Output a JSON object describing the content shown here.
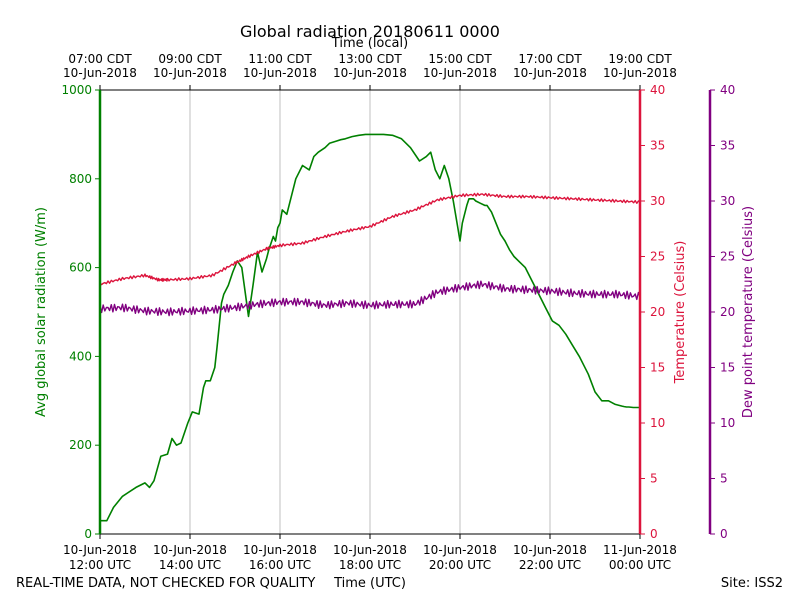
{
  "colors": {
    "solar": "#008000",
    "temperature": "#dc143c",
    "dewpoint": "#800080",
    "grid": "#b0b0b0",
    "axis": "#000000"
  },
  "footer": {
    "left": "REAL-TIME DATA, NOT CHECKED FOR QUALITY",
    "right": "Site: ISS2"
  },
  "chart_data": {
    "type": "line",
    "title": "Global radiation 20180611 0000",
    "xlabel": "Time (UTC)",
    "x2label": "Time (local)",
    "x_range_hours": [
      0,
      12
    ],
    "x_unit": "hours since 10-Jun-2018 12:00 UTC",
    "x_ticks": [
      {
        "hour": 0,
        "utc_date": "10-Jun-2018",
        "utc_time": "12:00 UTC",
        "local_time": "07:00 CDT",
        "local_date": "10-Jun-2018"
      },
      {
        "hour": 2,
        "utc_date": "10-Jun-2018",
        "utc_time": "14:00 UTC",
        "local_time": "09:00 CDT",
        "local_date": "10-Jun-2018"
      },
      {
        "hour": 4,
        "utc_date": "10-Jun-2018",
        "utc_time": "16:00 UTC",
        "local_time": "11:00 CDT",
        "local_date": "10-Jun-2018"
      },
      {
        "hour": 6,
        "utc_date": "10-Jun-2018",
        "utc_time": "18:00 UTC",
        "local_time": "13:00 CDT",
        "local_date": "10-Jun-2018"
      },
      {
        "hour": 8,
        "utc_date": "10-Jun-2018",
        "utc_time": "20:00 UTC",
        "local_time": "15:00 CDT",
        "local_date": "10-Jun-2018"
      },
      {
        "hour": 10,
        "utc_date": "10-Jun-2018",
        "utc_time": "22:00 UTC",
        "local_time": "17:00 CDT",
        "local_date": "10-Jun-2018"
      },
      {
        "hour": 12,
        "utc_date": "11-Jun-2018",
        "utc_time": "00:00 UTC",
        "local_time": "19:00 CDT",
        "local_date": "10-Jun-2018"
      }
    ],
    "y_axes": {
      "solar": {
        "label": "Avg global solar radiation (W/m)",
        "ylim": [
          0,
          1000
        ],
        "ticks": [
          "0",
          "200",
          "400",
          "600",
          "800",
          "1000"
        ]
      },
      "temperature": {
        "label": "Temperature (Celsius)",
        "ylim": [
          0,
          40
        ],
        "ticks": [
          "0",
          "5",
          "10",
          "15",
          "20",
          "25",
          "30",
          "35",
          "40"
        ]
      },
      "dewpoint": {
        "label": "Dew point temperature (Celsius)",
        "ylim": [
          0,
          40
        ],
        "ticks": [
          "0",
          "5",
          "10",
          "15",
          "20",
          "25",
          "30",
          "35",
          "40"
        ]
      }
    },
    "series": [
      {
        "name": "Avg global solar radiation",
        "axis": "solar",
        "x": [
          0,
          0.15,
          0.3,
          0.5,
          0.8,
          1.0,
          1.1,
          1.2,
          1.35,
          1.5,
          1.6,
          1.7,
          1.8,
          1.95,
          2.05,
          2.2,
          2.3,
          2.35,
          2.45,
          2.55,
          2.6,
          2.7,
          2.75,
          2.85,
          2.95,
          3.05,
          3.15,
          3.3,
          3.4,
          3.5,
          3.6,
          3.7,
          3.75,
          3.85,
          3.9,
          3.95,
          4.0,
          4.05,
          4.15,
          4.25,
          4.35,
          4.5,
          4.65,
          4.75,
          4.85,
          5.0,
          5.1,
          5.25,
          5.35,
          5.45,
          5.6,
          5.75,
          5.9,
          6.1,
          6.3,
          6.5,
          6.7,
          6.9,
          7.1,
          7.25,
          7.35,
          7.45,
          7.55,
          7.65,
          7.75,
          7.85,
          7.95,
          8.0,
          8.05,
          8.15,
          8.2,
          8.25,
          8.3,
          8.35,
          8.45,
          8.55,
          8.6,
          8.7,
          8.8,
          8.9,
          9.0,
          9.1,
          9.2,
          9.3,
          9.45,
          9.6,
          9.75,
          9.9,
          10.05,
          10.2,
          10.35,
          10.5,
          10.65,
          10.75,
          10.85,
          11.0,
          11.15,
          11.3,
          11.45,
          11.6,
          11.65,
          11.7,
          11.75,
          11.85,
          11.95,
          12.0
        ],
        "values": [
          30,
          30,
          60,
          85,
          105,
          115,
          105,
          120,
          175,
          180,
          215,
          200,
          205,
          250,
          275,
          270,
          330,
          345,
          345,
          375,
          420,
          520,
          540,
          560,
          590,
          615,
          600,
          490,
          560,
          635,
          590,
          620,
          640,
          670,
          660,
          690,
          700,
          730,
          720,
          760,
          800,
          830,
          820,
          850,
          860,
          870,
          880,
          885,
          888,
          890,
          895,
          898,
          900,
          900,
          900,
          898,
          890,
          870,
          840,
          850,
          860,
          820,
          800,
          830,
          800,
          750,
          690,
          660,
          700,
          740,
          755,
          755,
          755,
          750,
          745,
          740,
          740,
          725,
          700,
          675,
          660,
          640,
          625,
          615,
          600,
          570,
          540,
          510,
          480,
          470,
          450,
          425,
          400,
          380,
          360,
          320,
          300,
          300,
          292,
          288,
          287,
          286,
          286,
          285,
          285,
          285
        ]
      },
      {
        "name": "Temperature",
        "axis": "temperature",
        "x": [
          0,
          0.5,
          1.0,
          1.3,
          1.5,
          2.0,
          2.5,
          3.0,
          3.3,
          3.7,
          4.0,
          4.5,
          5.0,
          5.5,
          6.0,
          6.5,
          7.0,
          7.5,
          8.0,
          8.5,
          9.0,
          9.5,
          10.0,
          10.5,
          11.0,
          11.5,
          12.0
        ],
        "values": [
          22.5,
          23.0,
          23.3,
          22.9,
          22.9,
          23.0,
          23.3,
          24.4,
          25.0,
          25.7,
          26.0,
          26.2,
          26.8,
          27.3,
          27.7,
          28.6,
          29.2,
          30.1,
          30.5,
          30.6,
          30.4,
          30.4,
          30.3,
          30.2,
          30.1,
          30.0,
          29.9
        ]
      },
      {
        "name": "Dew point temperature",
        "axis": "dewpoint",
        "x": [
          0,
          0.5,
          1.0,
          1.5,
          2.0,
          2.5,
          3.0,
          3.5,
          4.0,
          4.5,
          5.0,
          5.5,
          6.0,
          6.5,
          7.0,
          7.5,
          8.0,
          8.5,
          9.0,
          9.5,
          10.0,
          10.5,
          11.0,
          11.5,
          12.0
        ],
        "values": [
          20.3,
          20.4,
          20.1,
          20.0,
          20.1,
          20.2,
          20.4,
          20.7,
          20.9,
          20.9,
          20.6,
          20.8,
          20.6,
          20.7,
          20.7,
          21.8,
          22.2,
          22.5,
          22.1,
          22.0,
          21.9,
          21.7,
          21.6,
          21.6,
          21.4
        ]
      }
    ]
  }
}
